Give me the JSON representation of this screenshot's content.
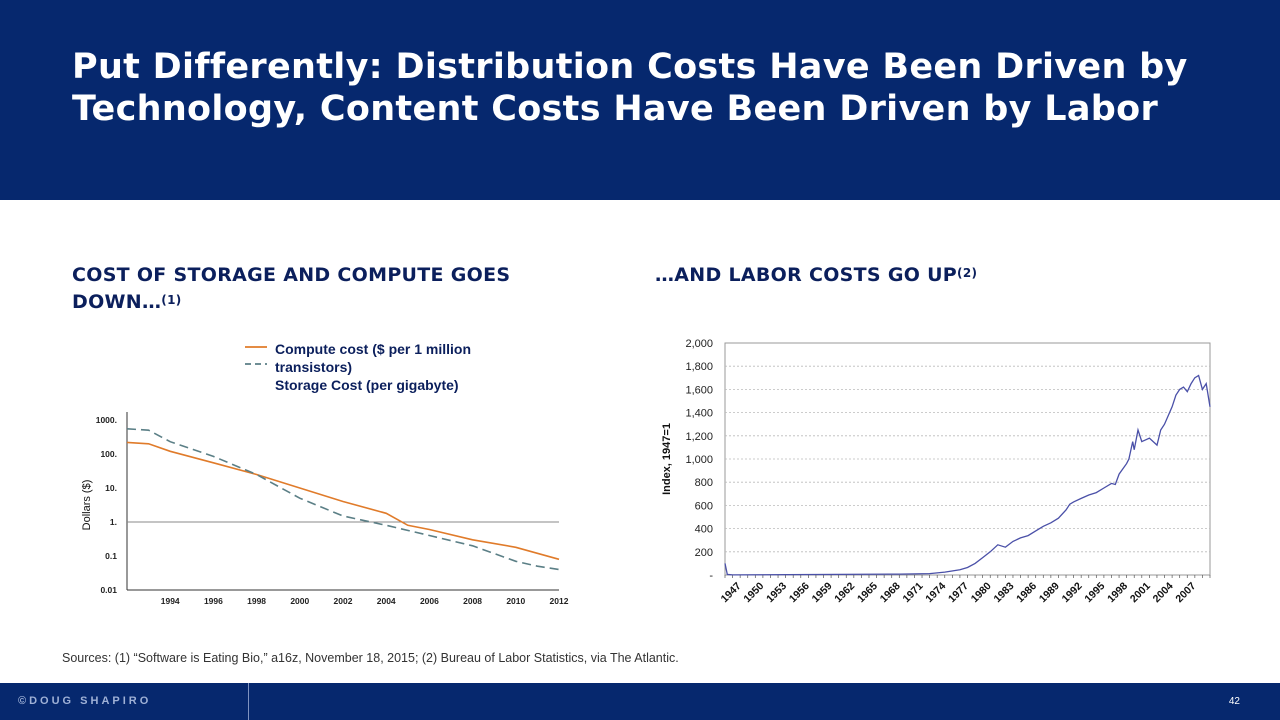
{
  "slide": {
    "title": "Put Differently: Distribution Costs Have Been Driven by Technology, Content Costs Have Been Driven by Labor",
    "left_title": "COST OF STORAGE AND COMPUTE GOES DOWN…",
    "left_title_note": "(1)",
    "right_title": "…AND LABOR COSTS GO UP",
    "right_title_note": "(2)",
    "sources": "Sources: (1) “Software is Eating Bio,” a16z, November 18, 2015; (2) Bureau of Labor Statistics, via The Atlantic.",
    "footer_brand": "©DOUG SHAPIRO",
    "page_number": "42"
  },
  "legend": {
    "compute": "Compute cost ($ per 1 million transistors)",
    "storage": "Storage Cost (per gigabyte)"
  },
  "colors": {
    "navy": "#06286e",
    "compute": "#e07b2a",
    "storage": "#5b7f86",
    "labor": "#4a50a8"
  },
  "chart_data": [
    {
      "type": "line",
      "ylabel": "Dollars ($)",
      "yscale": "log",
      "ylim": [
        0.01,
        1000
      ],
      "xlim": [
        1992,
        2012
      ],
      "xticks": [
        "1994",
        "1996",
        "1998",
        "2000",
        "2002",
        "2004",
        "2006",
        "2008",
        "2010",
        "2012"
      ],
      "yticks": [
        "1000.",
        "100.",
        "10.",
        "1.",
        "0.1",
        "0.01"
      ],
      "reference_line": 1,
      "series": [
        {
          "name": "Compute cost ($ per 1 million transistors)",
          "style": "solid",
          "x": [
            1992,
            1993,
            1994,
            1996,
            1998,
            2000,
            2002,
            2004,
            2005,
            2006,
            2008,
            2010,
            2012
          ],
          "y": [
            220,
            200,
            120,
            55,
            25,
            10,
            4,
            1.8,
            0.8,
            0.6,
            0.3,
            0.18,
            0.08
          ]
        },
        {
          "name": "Storage Cost (per gigabyte)",
          "style": "dashed",
          "x": [
            1992,
            1993,
            1994,
            1996,
            1998,
            2000,
            2002,
            2004,
            2006,
            2008,
            2010,
            2011,
            2012
          ],
          "y": [
            550,
            500,
            230,
            85,
            25,
            5,
            1.5,
            0.8,
            0.4,
            0.2,
            0.07,
            0.05,
            0.04
          ]
        }
      ]
    },
    {
      "type": "line",
      "ylabel": "Index, 1947=1",
      "ylim": [
        0,
        2000
      ],
      "yticks": [
        "2,000",
        "1,800",
        "1,600",
        "1,400",
        "1,200",
        "1,000",
        "800",
        "600",
        "400",
        "200",
        "-"
      ],
      "xticks": [
        "1947",
        "1950",
        "1953",
        "1956",
        "1959",
        "1962",
        "1965",
        "1968",
        "1971",
        "1974",
        "1977",
        "1980",
        "1983",
        "1986",
        "1989",
        "1992",
        "1995",
        "1998",
        "2001",
        "2004",
        "2007"
      ],
      "xlim": [
        1947,
        2011
      ],
      "series": [
        {
          "name": "",
          "x": [
            1947,
            1947.3,
            1948,
            1962,
            1970,
            1974,
            1976,
            1978,
            1979,
            1980,
            1981,
            1982,
            1983,
            1984,
            1985,
            1986,
            1987,
            1988,
            1989,
            1990,
            1991,
            1992,
            1992.5,
            1993,
            1994,
            1995,
            1996,
            1997,
            1998,
            1998.5,
            1999,
            2000,
            2000.3,
            2000.8,
            2001,
            2001.5,
            2002,
            2003,
            2004,
            2004.5,
            2005,
            2006,
            2006.5,
            2007,
            2007.5,
            2008,
            2008.5,
            2009,
            2009.5,
            2010,
            2010.5,
            2011
          ],
          "y": [
            100,
            5,
            1,
            5,
            8,
            12,
            25,
            45,
            65,
            100,
            150,
            200,
            260,
            240,
            290,
            320,
            340,
            380,
            420,
            450,
            490,
            560,
            610,
            630,
            660,
            690,
            710,
            750,
            790,
            780,
            870,
            960,
            1000,
            1150,
            1080,
            1250,
            1150,
            1180,
            1120,
            1250,
            1300,
            1450,
            1550,
            1600,
            1620,
            1580,
            1650,
            1700,
            1720,
            1600,
            1650,
            1450
          ]
        }
      ]
    }
  ]
}
